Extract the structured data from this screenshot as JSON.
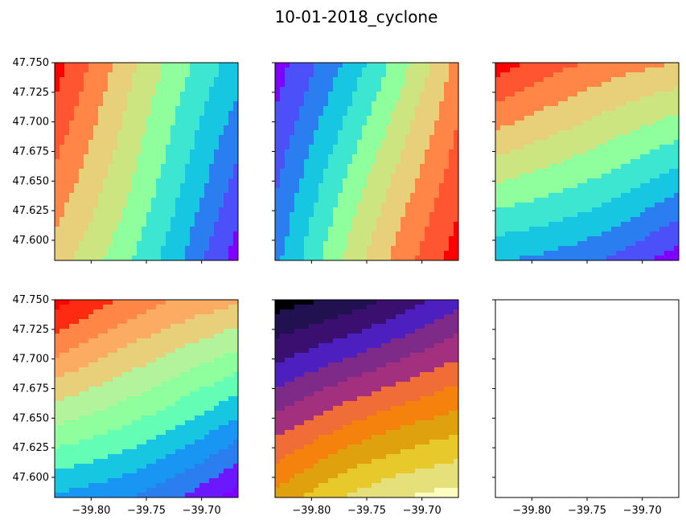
{
  "title": "10-01-2018_cyclone",
  "x_ticks": [
    "−39.80",
    "−39.75",
    "−39.70"
  ],
  "x_tick_values": [
    -39.8,
    -39.75,
    -39.7
  ],
  "y_ticks": [
    "47.750",
    "47.725",
    "47.700",
    "47.675",
    "47.650",
    "47.625",
    "47.600"
  ],
  "y_tick_values": [
    47.75,
    47.725,
    47.7,
    47.675,
    47.65,
    47.625,
    47.6
  ],
  "xlim": [
    -39.833,
    -39.667
  ],
  "ylim": [
    47.583,
    47.75
  ],
  "colors": {
    "rainbow": [
      "#7f00ff",
      "#6c18fe",
      "#4c50f8",
      "#2b7ef0",
      "#1996f3",
      "#17c6e0",
      "#3ce6d0",
      "#63fdb5",
      "#8ffe9c",
      "#b2f39b",
      "#cde581",
      "#e8d07a",
      "#fcab63",
      "#ff8647",
      "#ff5530",
      "#ff2a12",
      "#ff0000"
    ],
    "magma": [
      "#000004",
      "#221150",
      "#3b0f70",
      "#4d1fbe",
      "#7d2a88",
      "#a3307e",
      "#cf3e5a",
      "#f06d38",
      "#f4820c",
      "#e0a10e",
      "#e8c92c",
      "#e6e07a",
      "#fcfdbf"
    ]
  },
  "chart_data": [
    {
      "type": "heatmap",
      "panel": "top-left",
      "colormap": "rainbow",
      "xlim": [
        -39.833,
        -39.667
      ],
      "ylim": [
        47.583,
        47.75
      ],
      "z_levels": 11,
      "field": "contour bands rising toward upper-left, direction mostly horizontal with tilt",
      "gradient": {
        "a": -0.92,
        "b": 0.39
      }
    },
    {
      "type": "heatmap",
      "panel": "top-center",
      "colormap": "rainbow",
      "xlim": [
        -39.833,
        -39.667
      ],
      "ylim": [
        47.583,
        47.75
      ],
      "z_levels": 11,
      "field": "contour bands increasing left to right",
      "gradient": {
        "a": 1.0,
        "b": -0.28
      }
    },
    {
      "type": "heatmap",
      "panel": "top-right",
      "colormap": "rainbow",
      "xlim": [
        -39.833,
        -39.667
      ],
      "ylim": [
        47.583,
        47.75
      ],
      "z_levels": 11,
      "field": "contour bands increasing toward top",
      "gradient": {
        "a": -0.35,
        "b": 1.0
      }
    },
    {
      "type": "heatmap",
      "panel": "bottom-left",
      "colormap": "rainbow",
      "xlim": [
        -39.833,
        -39.667
      ],
      "ylim": [
        47.583,
        47.75
      ],
      "z_levels": 13,
      "field": "contour bands increasing toward top-left",
      "gradient": {
        "a": -0.38,
        "b": 1.0
      }
    },
    {
      "type": "heatmap",
      "panel": "bottom-center",
      "colormap": "magma",
      "xlim": [
        -39.833,
        -39.667
      ],
      "ylim": [
        47.583,
        47.75
      ],
      "z_levels": 12,
      "field": "contour bands increasing toward bottom-right",
      "gradient": {
        "a": 0.4,
        "b": -1.0
      }
    },
    {
      "type": "heatmap",
      "panel": "bottom-right",
      "colormap": "none",
      "xlim": [
        -39.833,
        -39.667
      ],
      "ylim": [
        47.583,
        47.75
      ],
      "z_levels": 0,
      "field": "empty"
    }
  ]
}
